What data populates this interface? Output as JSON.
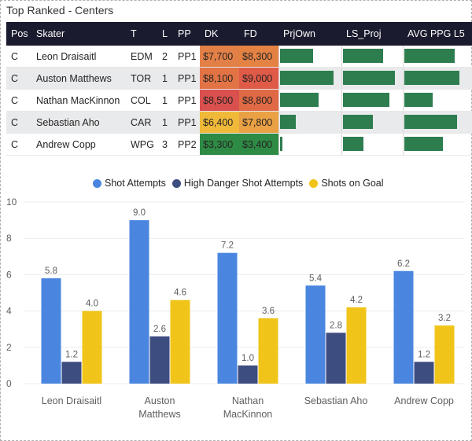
{
  "title": "Top Ranked - Centers",
  "table": {
    "headers": [
      "Pos",
      "Skater",
      "T",
      "L",
      "PP",
      "DK",
      "FD",
      "PrjOwn",
      "LS_Proj",
      "AVG PPG L5"
    ],
    "rows": [
      {
        "pos": "C",
        "skater": "Leon Draisaitl",
        "team": "EDM",
        "line": "2",
        "pp": "PP1",
        "dk": "$7,700",
        "fd": "$8,300",
        "dk_color": "#e38048",
        "fd_color": "#e48244",
        "prjown": 0.55,
        "ls_proj": 0.78,
        "avg_ppg": 0.92
      },
      {
        "pos": "C",
        "skater": "Auston Matthews",
        "team": "TOR",
        "line": "1",
        "pp": "PP1",
        "dk": "$8,100",
        "fd": "$9,000",
        "dk_color": "#e27345",
        "fd_color": "#e05a48",
        "prjown": 0.9,
        "ls_proj": 1.0,
        "avg_ppg": 1.0
      },
      {
        "pos": "C",
        "skater": "Nathan MacKinnon",
        "team": "COL",
        "line": "1",
        "pp": "PP1",
        "dk": "$8,500",
        "fd": "$8,800",
        "dk_color": "#d9504f",
        "fd_color": "#e06a45",
        "prjown": 0.65,
        "ls_proj": 0.9,
        "avg_ppg": 0.52
      },
      {
        "pos": "C",
        "skater": "Sebastian Aho",
        "team": "CAR",
        "line": "1",
        "pp": "PP1",
        "dk": "$6,400",
        "fd": "$7,800",
        "dk_color": "#f0b93a",
        "fd_color": "#eaa044",
        "prjown": 0.26,
        "ls_proj": 0.58,
        "avg_ppg": 0.95
      },
      {
        "pos": "C",
        "skater": "Andrew Copp",
        "team": "WPG",
        "line": "3",
        "pp": "PP2",
        "dk": "$3,300",
        "fd": "$3,400",
        "dk_color": "#2e8b45",
        "fd_color": "#2e8b45",
        "prjown": 0.04,
        "ls_proj": 0.4,
        "avg_ppg": 0.7
      }
    ]
  },
  "colors": {
    "bar_green": "#2e7d4f",
    "shot_attempts": "#4a86e0",
    "high_danger": "#3e4d80",
    "shots_on_goal": "#f0c419"
  },
  "chart_data": {
    "type": "bar",
    "categories": [
      "Leon Draisaitl",
      "Auston Matthews",
      "Nathan MacKinnon",
      "Sebastian Aho",
      "Andrew Copp"
    ],
    "category_lines": [
      [
        "Leon Draisaitl"
      ],
      [
        "Auston",
        "Matthews"
      ],
      [
        "Nathan",
        "MacKinnon"
      ],
      [
        "Sebastian Aho"
      ],
      [
        "Andrew Copp"
      ]
    ],
    "series": [
      {
        "name": "Shot Attempts",
        "values": [
          5.8,
          9.0,
          7.2,
          5.4,
          6.2
        ],
        "labels": [
          "5.8",
          "9.0",
          "7.2",
          "5.4",
          "6.2"
        ]
      },
      {
        "name": "High Danger Shot Attempts",
        "values": [
          1.2,
          2.6,
          1.0,
          2.8,
          1.2
        ],
        "labels": [
          "1.2",
          "2.6",
          "1.0",
          "2.8",
          "1.2"
        ]
      },
      {
        "name": "Shots on Goal",
        "values": [
          4.0,
          4.6,
          3.6,
          4.2,
          3.2
        ],
        "labels": [
          "4.0",
          "4.6",
          "3.6",
          "4.2",
          "3.2"
        ]
      }
    ],
    "ylim": [
      0,
      10
    ],
    "yticks": [
      "0",
      "2",
      "4",
      "6",
      "8",
      "10"
    ],
    "legend": "top-center"
  }
}
